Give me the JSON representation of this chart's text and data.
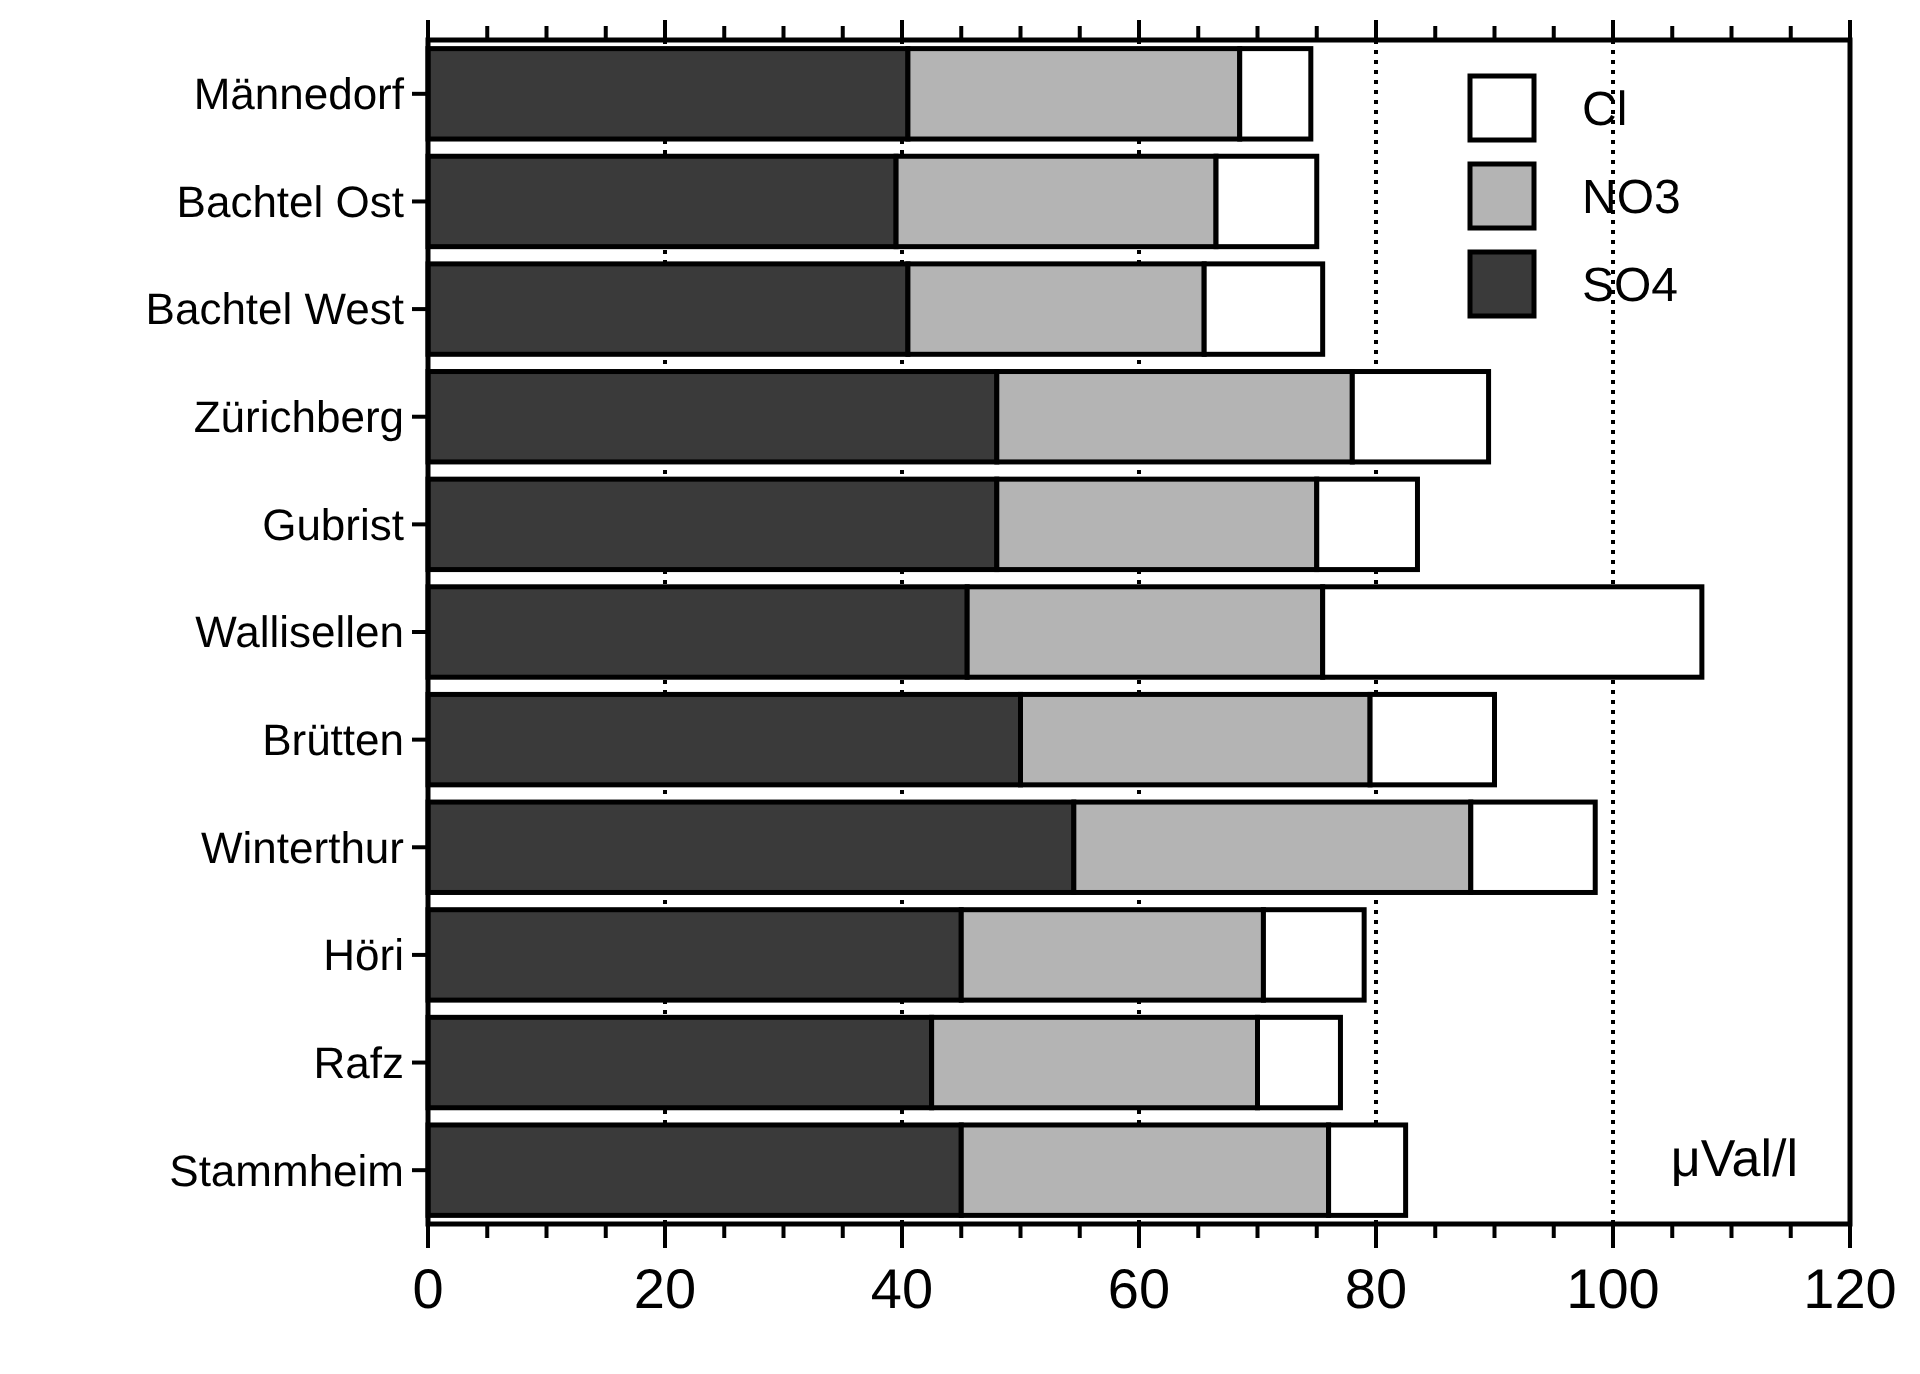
{
  "chart_data": {
    "type": "bar",
    "orientation": "horizontal",
    "stacked": true,
    "categories": [
      "Männedorf",
      "Bachtel Ost",
      "Bachtel West",
      "Zürichberg",
      "Gubrist",
      "Wallisellen",
      "Brütten",
      "Winterthur",
      "Höri",
      "Rafz",
      "Stammheim"
    ],
    "series": [
      {
        "name": "SO4",
        "color": "#3a3a3a",
        "values": [
          40.5,
          39.5,
          40.5,
          48,
          48,
          45.5,
          50,
          54.5,
          45,
          42.5,
          45
        ]
      },
      {
        "name": "NO3",
        "color": "#b4b4b4",
        "values": [
          28,
          27,
          25,
          30,
          27,
          30,
          29.5,
          33.5,
          25.5,
          27.5,
          31
        ]
      },
      {
        "name": "Cl",
        "color": "#ffffff",
        "values": [
          6,
          8.5,
          10,
          11.5,
          8.5,
          32,
          10.5,
          10.5,
          8.5,
          7,
          6.5
        ]
      }
    ],
    "xlim": [
      0,
      120
    ],
    "xticks": [
      0,
      {
        "value": 5,
        "label": null
      },
      {
        "value": 10,
        "label": null
      },
      {
        "value": 15,
        "label": null
      },
      20,
      {
        "value": 25,
        "label": null
      },
      {
        "value": 30,
        "label": null
      },
      {
        "value": 35,
        "label": null
      },
      40,
      {
        "value": 45,
        "label": null
      },
      {
        "value": 50,
        "label": null
      },
      {
        "value": 55,
        "label": null
      },
      60,
      {
        "value": 65,
        "label": null
      },
      {
        "value": 70,
        "label": null
      },
      {
        "value": 75,
        "label": null
      },
      80,
      {
        "value": 85,
        "label": null
      },
      {
        "value": 90,
        "label": null
      },
      {
        "value": 95,
        "label": null
      },
      100,
      {
        "value": 105,
        "label": null
      },
      {
        "value": 110,
        "label": null
      },
      {
        "value": 115,
        "label": null
      },
      120
    ],
    "grid": "x",
    "legend": "top right",
    "annotations": [
      "μVal/l"
    ]
  }
}
